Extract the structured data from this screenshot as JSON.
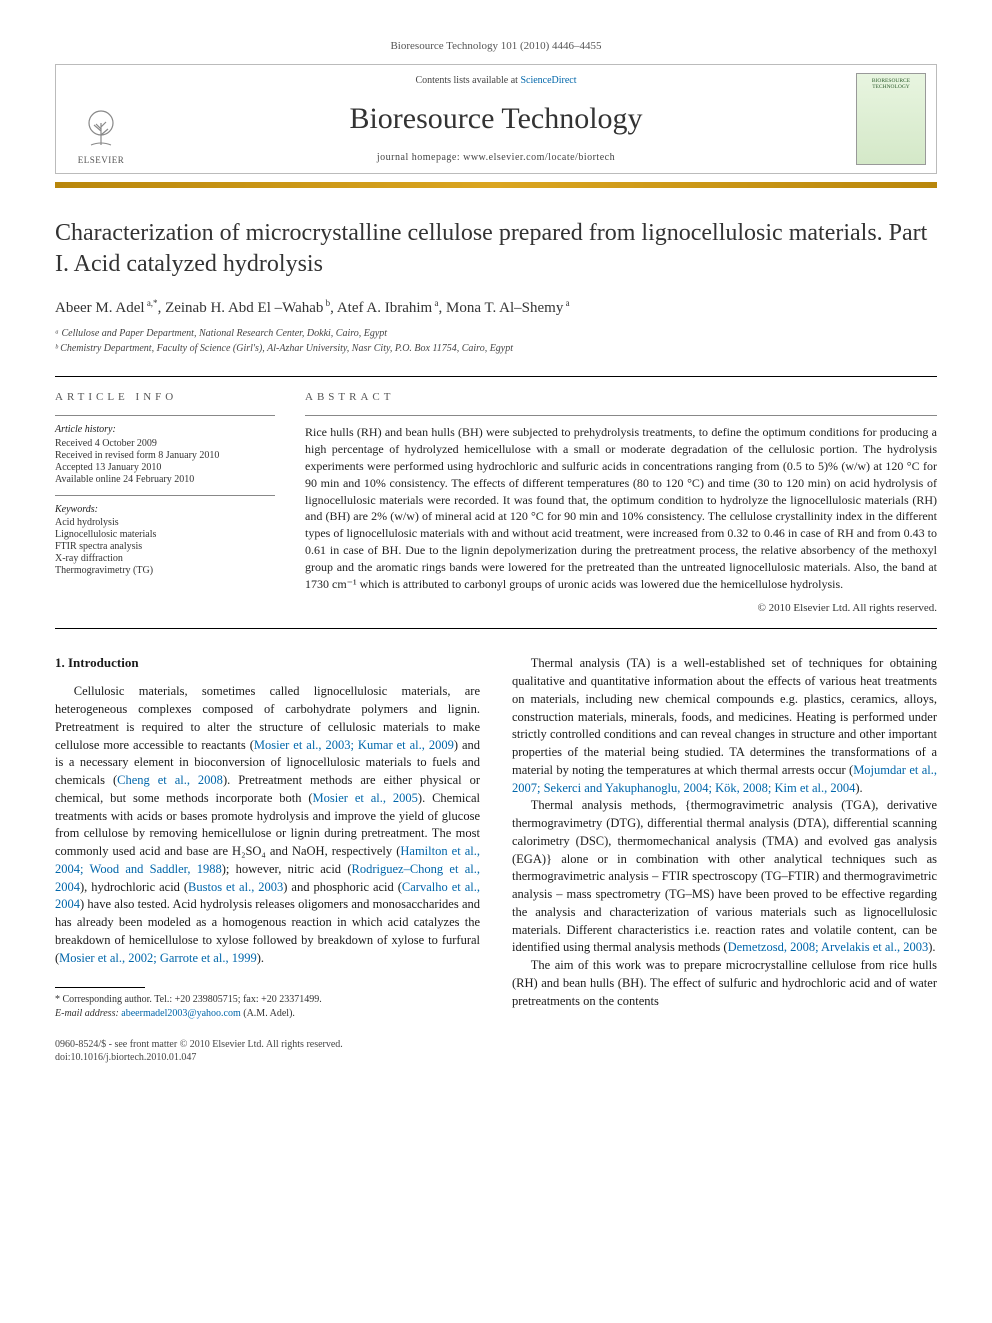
{
  "header": {
    "citation": "Bioresource Technology 101 (2010) 4446–4455",
    "contents_prefix": "Contents lists available at ",
    "contents_link": "ScienceDirect",
    "journal_name": "Bioresource Technology",
    "homepage_prefix": "journal homepage: ",
    "homepage_url": "www.elsevier.com/locate/biortech",
    "elsevier_label": "ELSEVIER",
    "cover_text_top": "BIORESOURCE",
    "cover_text_bottom": "TECHNOLOGY"
  },
  "title": "Characterization of microcrystalline cellulose prepared from lignocellulosic materials. Part I. Acid catalyzed hydrolysis",
  "authors_html": "Abeer M. Adel<sup> a,*</sup>, Zeinab H. Abd El –Wahab<sup> b</sup>, Atef A. Ibrahim<sup> a</sup>, Mona T. Al–Shemy<sup> a</sup>",
  "affiliations": [
    "ᵃ Cellulose and Paper Department, National Research Center, Dokki, Cairo, Egypt",
    "ᵇ Chemistry Department, Faculty of Science (Girl's), Al-Azhar University, Nasr City, P.O. Box 11754, Cairo, Egypt"
  ],
  "article_info": {
    "heading": "ARTICLE INFO",
    "history_label": "Article history:",
    "history": [
      "Received 4 October 2009",
      "Received in revised form 8 January 2010",
      "Accepted 13 January 2010",
      "Available online 24 February 2010"
    ],
    "keywords_label": "Keywords:",
    "keywords": [
      "Acid hydrolysis",
      "Lignocellulosic materials",
      "FTIR spectra analysis",
      "X-ray diffraction",
      "Thermogravimetry (TG)"
    ]
  },
  "abstract": {
    "heading": "ABSTRACT",
    "text": "Rice hulls (RH) and bean hulls (BH) were subjected to prehydrolysis treatments, to define the optimum conditions for producing a high percentage of hydrolyzed hemicellulose with a small or moderate degradation of the cellulosic portion. The hydrolysis experiments were performed using hydrochloric and sulfuric acids in concentrations ranging from (0.5 to 5)% (w/w) at 120 °C for 90 min and 10% consistency. The effects of different temperatures (80 to 120 °C) and time (30 to 120 min) on acid hydrolysis of lignocellulosic materials were recorded. It was found that, the optimum condition to hydrolyze the lignocellulosic materials (RH) and (BH) are 2% (w/w) of mineral acid at 120 °C for 90 min and 10% consistency. The cellulose crystallinity index in the different types of lignocellulosic materials with and without acid treatment, were increased from 0.32 to 0.46 in case of RH and from 0.43 to 0.61 in case of BH. Due to the lignin depolymerization during the pretreatment process, the relative absorbency of the methoxyl group and the aromatic rings bands were lowered for the pretreated than the untreated lignocellulosic materials. Also, the band at 1730 cm⁻¹ which is attributed to carbonyl groups of uronic acids was lowered due the hemicellulose hydrolysis.",
    "copyright": "© 2010 Elsevier Ltd. All rights reserved."
  },
  "body": {
    "section_heading": "1. Introduction",
    "left_col": "Cellulosic materials, sometimes called lignocellulosic materials, are heterogeneous complexes composed of carbohydrate polymers and lignin. Pretreatment is required to alter the structure of cellulosic materials to make cellulose more accessible to reactants (<a>Mosier et al., 2003; Kumar et al., 2009</a>) and is a necessary element in bioconversion of lignocellulosic materials to fuels and chemicals (<a>Cheng et al., 2008</a>). Pretreatment methods are either physical or chemical, but some methods incorporate both (<a>Mosier et al., 2005</a>). Chemical treatments with acids or bases promote hydrolysis and improve the yield of glucose from cellulose by removing hemicellulose or lignin during pretreatment. The most commonly used acid and base are H₂SO₄ and NaOH, respectively (<a>Hamilton et al., 2004; Wood and Saddler, 1988</a>); however, nitric acid (<a>Rodriguez–Chong et al., 2004</a>), hydrochloric acid (<a>Bustos et al., 2003</a>) and phosphoric acid (<a>Carvalho et al., 2004</a>) have also tested. Acid hydrolysis releases oligomers and monosaccharides and has already been modeled as a homogenous reaction in which acid catalyzes the breakdown of hemicellulose to xylose followed by breakdown of xylose to furfural (<a>Mosier et al., 2002; Garrote et al., 1999</a>).",
    "right_col_p1": "Thermal analysis (TA) is a well-established set of techniques for obtaining qualitative and quantitative information about the effects of various heat treatments on materials, including new chemical compounds e.g. plastics, ceramics, alloys, construction materials, minerals, foods, and medicines. Heating is performed under strictly controlled conditions and can reveal changes in structure and other important properties of the material being studied. TA determines the transformations of a material by noting the temperatures at which thermal arrests occur (<a>Mojumdar et al., 2007; Sekerci and Yakuphanoglu, 2004; Kök, 2008; Kim et al., 2004</a>).",
    "right_col_p2": "Thermal analysis methods, {thermogravimetric analysis (TGA), derivative thermogravimetry (DTG), differential thermal analysis (DTA), differential scanning calorimetry (DSC), thermomechanical analysis (TMA) and evolved gas analysis (EGA)} alone or in combination with other analytical techniques such as thermogravimetric analysis – FTIR spectroscopy (TG–FTIR) and thermogravimetric analysis – mass spectrometry (TG–MS) have been proved to be effective regarding the analysis and characterization of various materials such as lignocellulosic materials. Different characteristics i.e. reaction rates and volatile content, can be identified using thermal analysis methods (<a>Demetzosd, 2008; Arvelakis et al., 2003</a>).",
    "right_col_p3": "The aim of this work was to prepare microcrystalline cellulose from rice hulls (RH) and bean hulls (BH). The effect of sulfuric and hydrochloric acid and of water pretreatments on the contents"
  },
  "footnote": {
    "corresponding": "* Corresponding author. Tel.: +20 239805715; fax: +20 23371499.",
    "email_label": "E-mail address:",
    "email": "abeermadel2003@yahoo.com",
    "email_suffix": "(A.M. Adel)."
  },
  "bottom": {
    "line1": "0960-8524/$ - see front matter © 2010 Elsevier Ltd. All rights reserved.",
    "line2": "doi:10.1016/j.biortech.2010.01.047"
  },
  "colors": {
    "link": "#0066aa",
    "gold_bar_1": "#b8860b",
    "gold_bar_2": "#daa520"
  }
}
